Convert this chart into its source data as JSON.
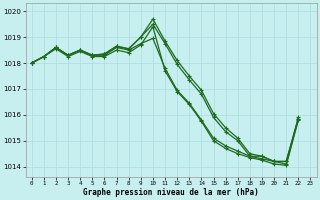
{
  "title": "Graphe pression niveau de la mer (hPa)",
  "bg_color": "#c8eff0",
  "grid_color": "#aadde0",
  "line_color": "#1e6b1e",
  "markersize": 2.5,
  "linewidth": 0.9,
  "ylim": [
    1013.6,
    1020.3
  ],
  "yticks": [
    1014,
    1015,
    1016,
    1017,
    1018,
    1019,
    1020
  ],
  "xticks": [
    0,
    1,
    2,
    3,
    4,
    5,
    6,
    7,
    8,
    9,
    10,
    11,
    12,
    13,
    14,
    15,
    16,
    17,
    18,
    19,
    20,
    21,
    22,
    23
  ],
  "series": [
    [
      1018.0,
      1018.25,
      1018.6,
      1018.3,
      1018.5,
      1018.3,
      1018.35,
      1018.65,
      1018.55,
      1019.0,
      1019.7,
      1018.85,
      1018.1,
      1017.5,
      1016.95,
      1016.05,
      1015.5,
      1015.1,
      1014.5,
      1014.4,
      1014.2,
      1014.2,
      1015.9
    ],
    [
      1018.0,
      1018.25,
      1018.6,
      1018.3,
      1018.5,
      1018.3,
      1018.35,
      1018.65,
      1018.55,
      1019.0,
      1019.5,
      1018.75,
      1017.95,
      1017.35,
      1016.8,
      1015.9,
      1015.35,
      1015.0,
      1014.4,
      1014.4,
      1014.2,
      1014.2,
      1015.85
    ],
    [
      1018.0,
      1018.25,
      1018.6,
      1018.3,
      1018.5,
      1018.3,
      1018.3,
      1018.6,
      1018.5,
      1018.75,
      1018.95,
      1017.8,
      1016.95,
      1016.45,
      1015.8,
      1015.1,
      1014.8,
      1014.6,
      1014.4,
      1014.3,
      1014.2,
      1014.1,
      1015.85
    ],
    [
      1018.0,
      1018.25,
      1018.55,
      1018.25,
      1018.45,
      1018.25,
      1018.25,
      1018.5,
      1018.4,
      1018.7,
      1019.4,
      1017.7,
      1016.9,
      1016.4,
      1015.75,
      1015.0,
      1014.7,
      1014.5,
      1014.35,
      1014.25,
      1014.1,
      1014.05,
      1015.8
    ]
  ]
}
